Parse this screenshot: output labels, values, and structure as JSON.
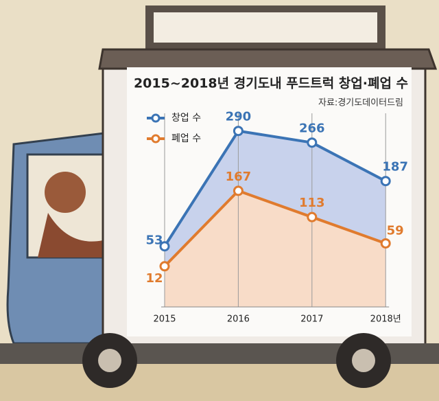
{
  "chart_data": {
    "type": "line",
    "title": "2015~2018년 경기도내 푸드트럭 창업·폐업 수",
    "source": "자료:경기도데이터드림",
    "categories": [
      "2015",
      "2016",
      "2017",
      "2018년"
    ],
    "series": [
      {
        "name": "창업 수",
        "color": "#3b74b5",
        "area_color": "#c8d2ec",
        "values": [
          53,
          290,
          266,
          187
        ]
      },
      {
        "name": "폐업 수",
        "color": "#e07b2e",
        "area_color": "#f8dcc8",
        "values": [
          12,
          167,
          113,
          59
        ]
      }
    ],
    "grid": true
  }
}
